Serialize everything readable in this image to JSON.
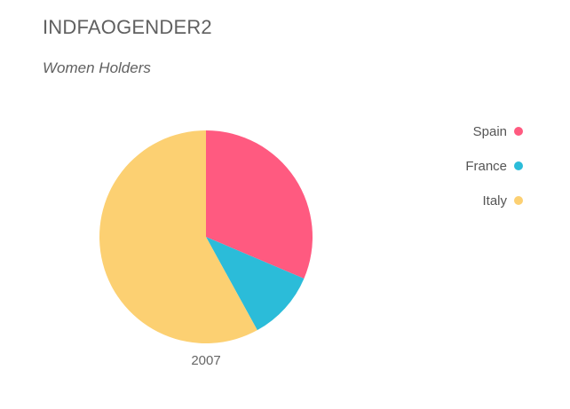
{
  "title": "INDFAOGENDER2",
  "subtitle": "Women Holders",
  "chart_data": {
    "type": "pie",
    "title": "INDFAOGENDER2",
    "subtitle": "Women Holders",
    "category_label": "2007",
    "categories": [
      "Spain",
      "France",
      "Italy"
    ],
    "values": [
      31.4,
      10.6,
      58.0
    ],
    "colors": [
      "#FF5A80",
      "#2BBCD9",
      "#FCD072"
    ],
    "legend_position": "right"
  },
  "legend": {
    "items": [
      {
        "label": "Spain",
        "color": "#FF5A80"
      },
      {
        "label": "France",
        "color": "#2BBCD9"
      },
      {
        "label": "Italy",
        "color": "#FCD072"
      }
    ]
  }
}
